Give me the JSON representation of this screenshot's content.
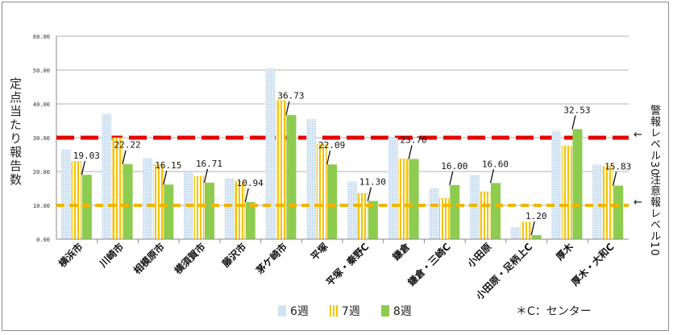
{
  "chart_data": {
    "type": "bar",
    "ylabel": "定点当たり報告数",
    "ylim": [
      0,
      60
    ],
    "yticks": [
      "0.00",
      "10.00",
      "20.00",
      "30.00",
      "40.00",
      "50.00",
      "60.00"
    ],
    "categories": [
      "横浜市",
      "川崎市",
      "相模原市",
      "横須賀市",
      "藤沢市",
      "茅ケ崎市",
      "平塚",
      "平塚・秦野C",
      "鎌倉",
      "鎌倉・三崎C",
      "小田原",
      "小田原・足柄上C",
      "厚木",
      "厚木・大和C"
    ],
    "series": [
      {
        "name": "6週",
        "values": [
          26.5,
          37.0,
          24.0,
          20.0,
          18.0,
          50.5,
          35.5,
          17.0,
          30.0,
          15.0,
          19.0,
          3.5,
          32.0,
          22.0
        ]
      },
      {
        "name": "7週",
        "values": [
          23.0,
          30.0,
          22.0,
          18.5,
          17.0,
          41.0,
          28.0,
          13.5,
          23.7,
          12.0,
          14.0,
          5.0,
          27.5,
          21.5
        ]
      },
      {
        "name": "8週",
        "values": [
          19.03,
          22.22,
          16.15,
          16.71,
          10.94,
          36.73,
          22.09,
          11.3,
          23.7,
          16.0,
          16.6,
          1.2,
          32.53,
          15.83
        ]
      }
    ],
    "data_labels": [
      "19.03",
      "22.22",
      "16.15",
      "16.71",
      "10.94",
      "36.73",
      "22.09",
      "11.30",
      "23.70",
      "16.00",
      "16.60",
      "1.20",
      "32.53",
      "15.83"
    ],
    "reference_lines": [
      {
        "value": 30,
        "color": "#e60000",
        "label": "警報レベル30"
      },
      {
        "value": 10,
        "color": "#f2b400",
        "label": "注意報レベル10"
      }
    ],
    "colors": {
      "s6": "#cfe3f2",
      "s7": "#f7c200",
      "s8": "#8dcc4f"
    },
    "legend": "bottom"
  },
  "labels": {
    "alarm": "警報レベル30",
    "caution": "注意報レベル10",
    "note": "＊C：センター",
    "arrow": "←"
  }
}
